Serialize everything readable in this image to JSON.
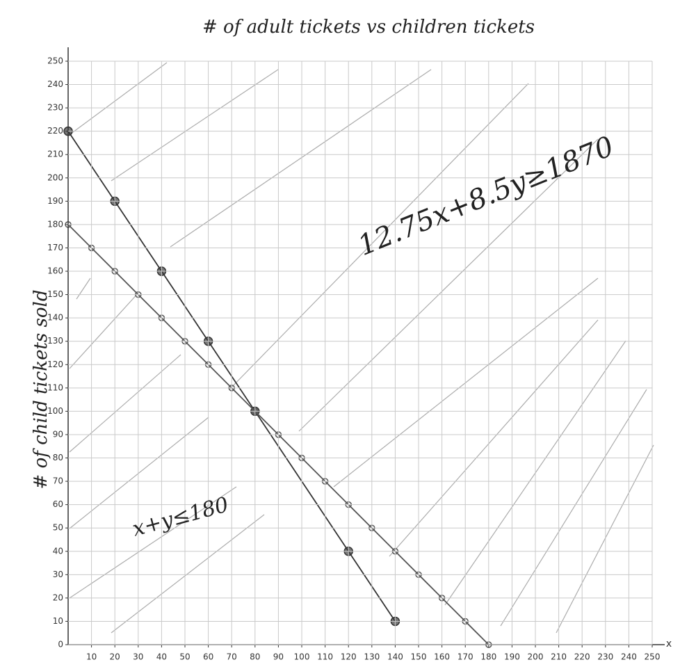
{
  "chart_data": {
    "type": "line",
    "title": "# of adult tickets vs children tickets",
    "y_label": "# of child tickets sold",
    "x_label": "x",
    "xlim": [
      0,
      250
    ],
    "ylim": [
      0,
      250
    ],
    "xticks": [
      10,
      20,
      30,
      40,
      50,
      60,
      70,
      80,
      90,
      100,
      110,
      120,
      130,
      140,
      150,
      160,
      170,
      180,
      190,
      200,
      210,
      220,
      230,
      240,
      250
    ],
    "yticks": [
      0,
      10,
      20,
      30,
      40,
      50,
      60,
      70,
      80,
      90,
      100,
      110,
      120,
      130,
      140,
      150,
      160,
      170,
      180,
      190,
      200,
      210,
      220,
      230,
      240,
      250
    ],
    "grid": true,
    "series": [
      {
        "name": "x+y≤180",
        "color": "#555555",
        "x": [
          0,
          10,
          20,
          30,
          40,
          50,
          60,
          70,
          80,
          90,
          100,
          110,
          120,
          130,
          140,
          150,
          160,
          170,
          180
        ],
        "values": [
          180,
          170,
          160,
          150,
          140,
          130,
          120,
          110,
          100,
          90,
          80,
          70,
          60,
          50,
          40,
          30,
          20,
          10,
          0
        ]
      },
      {
        "name": "12.75x+8.5y≥1870",
        "color": "#333333",
        "x": [
          0,
          20,
          40,
          60,
          80,
          120,
          140
        ],
        "values": [
          220,
          190,
          160,
          130,
          100,
          40,
          10
        ]
      }
    ]
  }
}
